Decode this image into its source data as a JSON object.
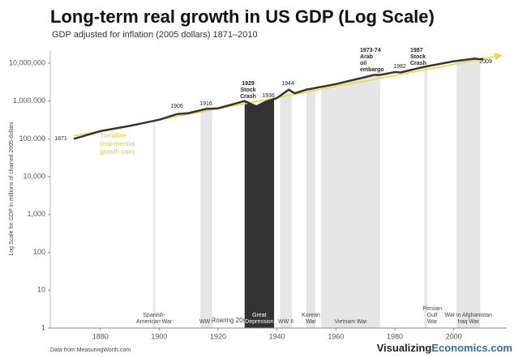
{
  "chart_data": {
    "type": "line",
    "title": "Long-term real growth in US GDP (Log Scale)",
    "subtitle": "GDP adjusted for inflation (2005 dollars) 1871–2010",
    "y_label": "Log Scale for GDP in millions of chained 2005 dollars",
    "source": "Data from MeasuringWorth.com",
    "brand": [
      "Visualizing",
      "Economics.com"
    ],
    "log_scale": true,
    "xlim": [
      1863,
      2018
    ],
    "xticks": [
      1880,
      1900,
      1920,
      1940,
      1960,
      1980,
      2000
    ],
    "ylim": [
      1,
      22000000
    ],
    "yticks": [
      1,
      10,
      100,
      {
        "value": 1000,
        "label": "1,000"
      },
      {
        "value": 10000,
        "label": "10,000"
      },
      {
        "value": 100000,
        "label": "100,000"
      },
      {
        "value": 1000000,
        "label": "1,000,000"
      },
      {
        "value": 10000000,
        "label": "10,000,000"
      }
    ],
    "series": [
      {
        "name": "GDP",
        "color": "#333333",
        "x": [
          1871,
          1880,
          1890,
          1900,
          1906,
          1910,
          1916,
          1920,
          1929,
          1933,
          1936,
          1940,
          1944,
          1946,
          1950,
          1960,
          1970,
          1973,
          1975,
          1980,
          1982,
          1990,
          2000,
          2007,
          2009,
          2010
        ],
        "values": [
          100000,
          160000,
          220000,
          320000,
          450000,
          480000,
          620000,
          640000,
          1000000,
          720000,
          950000,
          1200000,
          2000000,
          1600000,
          2000000,
          2800000,
          4300000,
          4900000,
          4900000,
          5800000,
          5700000,
          8000000,
          11200000,
          13200000,
          12700000,
          13100000
        ]
      },
      {
        "name": "Trendline",
        "color": "#e3dc3c",
        "x": [
          1871,
          2016
        ],
        "values": [
          120000,
          16000000
        ]
      }
    ],
    "trend_label": [
      "Trendline",
      "(exponential",
      "growth rate)"
    ],
    "events": [
      {
        "label": [
          "Spanish-",
          "American War"
        ],
        "start": 1898,
        "end": 1898.6,
        "color": "#e6e6e6"
      },
      {
        "label": [
          "WW I"
        ],
        "start": 1914,
        "end": 1918,
        "color": "#e6e6e6"
      },
      {
        "label": [
          "Great",
          "Depression"
        ],
        "start": 1929,
        "end": 1939,
        "color": "#333333"
      },
      {
        "label": [
          "WW II"
        ],
        "start": 1941,
        "end": 1945,
        "color": "#e6e6e6"
      },
      {
        "label": [
          "Korean",
          "War"
        ],
        "start": 1950,
        "end": 1953,
        "color": "#e6e6e6"
      },
      {
        "label": [
          "Vietnam War"
        ],
        "start": 1955,
        "end": 1975,
        "color": "#e6e6e6"
      },
      {
        "label": [
          "Persian",
          "Gulf",
          "War"
        ],
        "start": 1990,
        "end": 1991,
        "color": "#e6e6e6"
      },
      {
        "label": [
          "War in Afghanistan",
          "Iraq War"
        ],
        "start": 2001,
        "end": 2009,
        "color": "#e6e6e6"
      }
    ],
    "period_label": "Roaring 20s",
    "annotations": [
      {
        "text": [
          "1871"
        ]
      },
      {
        "text": [
          "1906"
        ]
      },
      {
        "text": [
          "1916"
        ]
      },
      {
        "text": [
          "1929",
          "Stock",
          "Crash"
        ],
        "bold": true
      },
      {
        "text": [
          "1936"
        ]
      },
      {
        "text": [
          "1944"
        ]
      },
      {
        "text": [
          "1973-74",
          "Arab",
          "oil",
          "embargo"
        ],
        "bold": true
      },
      {
        "text": [
          "1982"
        ]
      },
      {
        "text": [
          "1987",
          "Stock",
          "Crash"
        ],
        "bold": true
      },
      {
        "text": [
          "2009"
        ]
      }
    ]
  }
}
